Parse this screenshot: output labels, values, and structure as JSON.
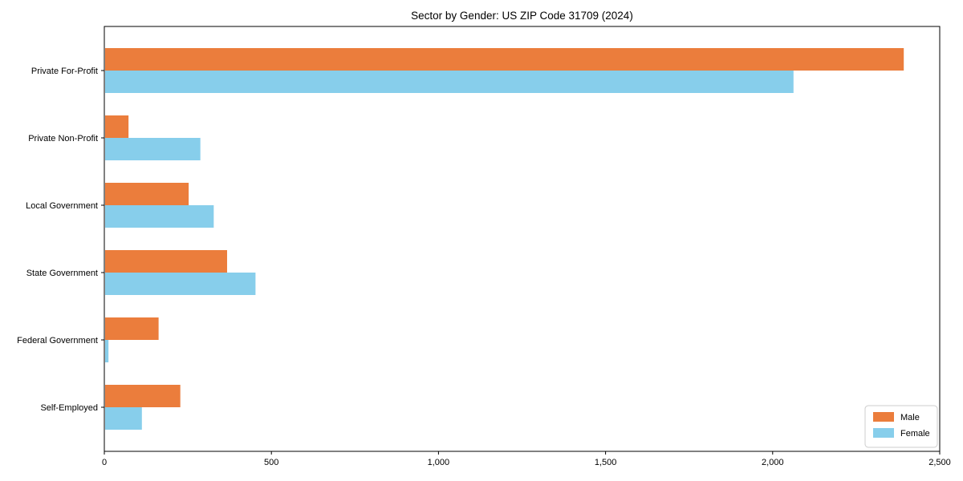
{
  "chart_data": {
    "type": "bar",
    "orientation": "horizontal",
    "title": "Sector by Gender: US ZIP Code 31709 (2024)",
    "categories": [
      "Private For-Profit",
      "Private Non-Profit",
      "Local Government",
      "State Government",
      "Federal Government",
      "Self-Employed"
    ],
    "series": [
      {
        "name": "Male",
        "color": "#EB7D3C",
        "values": [
          2390,
          70,
          250,
          365,
          160,
          225
        ]
      },
      {
        "name": "Female",
        "color": "#87CEEB",
        "values": [
          2060,
          285,
          325,
          450,
          10,
          110
        ]
      }
    ],
    "xlim": [
      0,
      2500
    ],
    "x_ticks": [
      0,
      500,
      1000,
      1500,
      2000,
      2500
    ],
    "x_tick_labels": [
      "0",
      "500",
      "1,000",
      "1,500",
      "2,000",
      "2,500"
    ],
    "grid": false,
    "legend": {
      "position": "lower-right",
      "labels": [
        "Male",
        "Female"
      ]
    },
    "axis_color": "#000000",
    "legend_border_color": "#cccccc"
  }
}
